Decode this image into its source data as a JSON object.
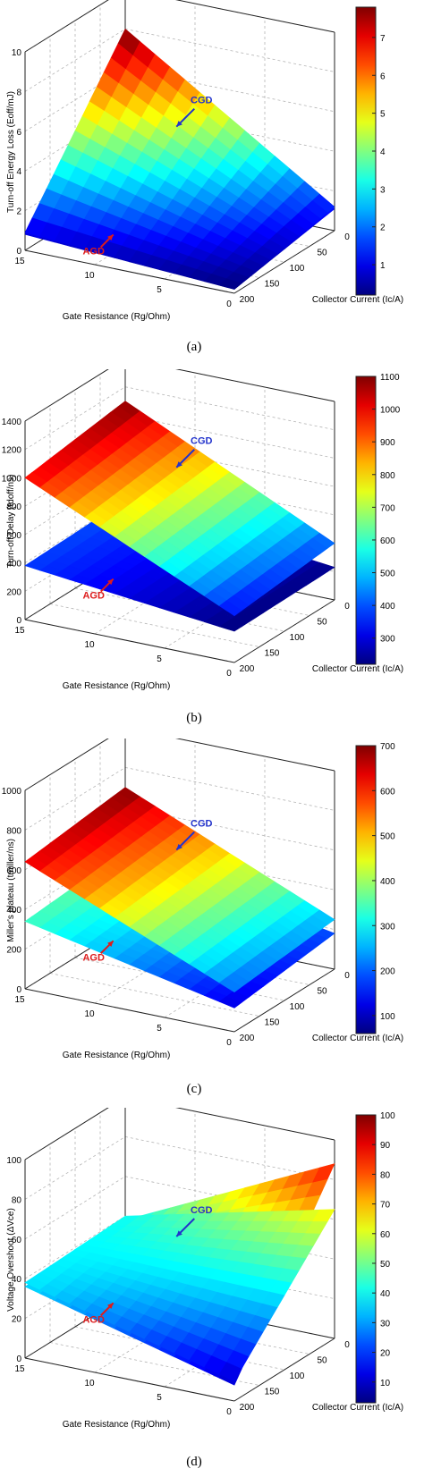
{
  "chart_data": [
    {
      "type": "surface3d",
      "caption": "(a)",
      "xlabel": "Gate Resistance (Rg/Ohm)",
      "ylabel": "Collector Current (Ic/A)",
      "zlabel": "Turn-off Energy Loss (Eoff/mJ)",
      "xticks": [
        "15",
        "10",
        "5",
        "0"
      ],
      "yticks": [
        "0",
        "50",
        "100",
        "150",
        "200"
      ],
      "zticks": [
        "0",
        "2",
        "4",
        "6",
        "8",
        "10"
      ],
      "zlim": [
        0,
        10
      ],
      "colorbar": {
        "ticks": [
          "1",
          "2",
          "3",
          "4",
          "5",
          "6",
          "7"
        ],
        "min": 0.2,
        "max": 7.8
      },
      "surfaces": [
        {
          "name": "CGD",
          "corners": {
            "rg15_ic0": 8.0,
            "rg0_ic0": 1.2,
            "rg15_ic200": 0.9,
            "rg0_ic200": 0.2
          }
        },
        {
          "name": "AGD",
          "corners": {
            "rg15_ic0": 5.3,
            "rg0_ic0": 1.1,
            "rg15_ic200": 0.8,
            "rg0_ic200": 0.2
          }
        }
      ]
    },
    {
      "type": "surface3d",
      "caption": "(b)",
      "xlabel": "Gate Resistance (Rg/Ohm)",
      "ylabel": "Collector Current (Ic/A)",
      "zlabel": "Turn-off Delay (tdoff/ns)",
      "xticks": [
        "15",
        "10",
        "5",
        "0"
      ],
      "yticks": [
        "0",
        "50",
        "100",
        "150",
        "200"
      ],
      "zticks": [
        "0",
        "200",
        "400",
        "600",
        "800",
        "1000",
        "1200",
        "1400"
      ],
      "zlim": [
        0,
        1400
      ],
      "colorbar": {
        "ticks": [
          "300",
          "400",
          "500",
          "600",
          "700",
          "800",
          "900",
          "1000",
          "1100"
        ],
        "min": 220,
        "max": 1100
      },
      "surfaces": [
        {
          "name": "CGD",
          "corners": {
            "rg15_ic0": 1100,
            "rg0_ic0": 400,
            "rg15_ic200": 1000,
            "rg0_ic200": 330
          }
        },
        {
          "name": "AGD",
          "corners": {
            "rg15_ic0": 400,
            "rg0_ic0": 230,
            "rg15_ic200": 380,
            "rg0_ic200": 220
          }
        }
      ]
    },
    {
      "type": "surface3d",
      "caption": "(c)",
      "xlabel": "Gate Resistance (Rg/Ohm)",
      "ylabel": "Collector Current (Ic/A)",
      "zlabel": "Miller's plateau  (tmiller/ns)",
      "xticks": [
        "15",
        "10",
        "5",
        "0"
      ],
      "yticks": [
        "0",
        "50",
        "100",
        "150",
        "200"
      ],
      "zticks": [
        "0",
        "200",
        "400",
        "600",
        "800",
        "1000"
      ],
      "zlim": [
        0,
        1000
      ],
      "colorbar": {
        "ticks": [
          "100",
          "200",
          "300",
          "400",
          "500",
          "600",
          "700"
        ],
        "min": 60,
        "max": 700
      },
      "surfaces": [
        {
          "name": "CGD",
          "corners": {
            "rg15_ic0": 700,
            "rg0_ic0": 250,
            "rg15_ic200": 640,
            "rg0_ic200": 200
          }
        },
        {
          "name": "AGD",
          "corners": {
            "rg15_ic0": 380,
            "rg0_ic0": 180,
            "rg15_ic200": 340,
            "rg0_ic200": 120
          }
        }
      ]
    },
    {
      "type": "surface3d",
      "caption": "(d)",
      "xlabel": "Gate Resistance (Rg/Ohm)",
      "ylabel": "Collector Current (Ic/A)",
      "zlabel": "Voltage Overshoot (ΔVce)",
      "xticks": [
        "15",
        "10",
        "5",
        "0"
      ],
      "yticks": [
        "0",
        "50",
        "100",
        "150",
        "200"
      ],
      "zticks": [
        "0",
        "20",
        "40",
        "60",
        "80",
        "100"
      ],
      "zlim": [
        0,
        100
      ],
      "colorbar": {
        "ticks": [
          "10",
          "20",
          "30",
          "40",
          "50",
          "60",
          "70",
          "80",
          "90",
          "100"
        ],
        "min": 3,
        "max": 100
      },
      "surfaces": [
        {
          "name": "CGD",
          "corners": {
            "rg15_ic0": 40,
            "rg0_ic0": 65,
            "rg15_ic200": 38,
            "rg0_ic200": 10
          }
        },
        {
          "name": "AGD",
          "corners": {
            "rg15_ic0": 38,
            "rg0_ic0": 88,
            "rg15_ic200": 36,
            "rg0_ic200": 8
          }
        }
      ]
    }
  ]
}
